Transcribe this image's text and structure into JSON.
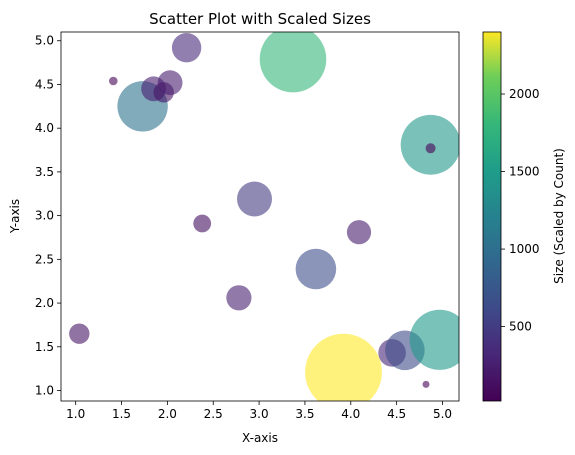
{
  "chart_data": {
    "type": "scatter",
    "title": "Scatter Plot with Scaled Sizes",
    "xlabel": "X-axis",
    "ylabel": "Y-axis",
    "xlim": [
      0.84,
      5.18
    ],
    "ylim": [
      0.88,
      5.1
    ],
    "xticks": [
      "1.0",
      "1.5",
      "2.0",
      "2.5",
      "3.0",
      "3.5",
      "4.0",
      "4.5",
      "5.0"
    ],
    "yticks": [
      "1.0",
      "1.5",
      "2.0",
      "2.5",
      "3.0",
      "3.5",
      "4.0",
      "4.5",
      "5.0"
    ],
    "colormap": "viridis",
    "alpha": 0.6,
    "grid": false,
    "colorbar": {
      "label": "Size (Scaled by Count)",
      "range": [
        20,
        2400
      ],
      "ticks": [
        "500",
        "1000",
        "1500",
        "2000"
      ]
    },
    "points": [
      {
        "x": 1.04,
        "y": 1.65,
        "size": 170
      },
      {
        "x": 1.41,
        "y": 4.54,
        "size": 30
      },
      {
        "x": 1.73,
        "y": 4.25,
        "size": 1030
      },
      {
        "x": 1.85,
        "y": 4.45,
        "size": 250
      },
      {
        "x": 1.96,
        "y": 4.41,
        "size": 170
      },
      {
        "x": 2.03,
        "y": 4.52,
        "size": 250
      },
      {
        "x": 2.21,
        "y": 4.92,
        "size": 350
      },
      {
        "x": 2.38,
        "y": 2.91,
        "size": 130
      },
      {
        "x": 2.78,
        "y": 2.06,
        "size": 260
      },
      {
        "x": 2.95,
        "y": 3.19,
        "size": 500
      },
      {
        "x": 3.37,
        "y": 4.79,
        "size": 1800
      },
      {
        "x": 3.62,
        "y": 2.39,
        "size": 670
      },
      {
        "x": 3.92,
        "y": 1.21,
        "size": 2400
      },
      {
        "x": 4.09,
        "y": 2.81,
        "size": 240
      },
      {
        "x": 4.45,
        "y": 1.43,
        "size": 310
      },
      {
        "x": 4.59,
        "y": 1.46,
        "size": 640
      },
      {
        "x": 4.82,
        "y": 1.07,
        "size": 20
      },
      {
        "x": 4.87,
        "y": 3.81,
        "size": 1450
      },
      {
        "x": 4.87,
        "y": 3.77,
        "size": 40
      },
      {
        "x": 4.97,
        "y": 1.58,
        "size": 1470
      }
    ]
  }
}
